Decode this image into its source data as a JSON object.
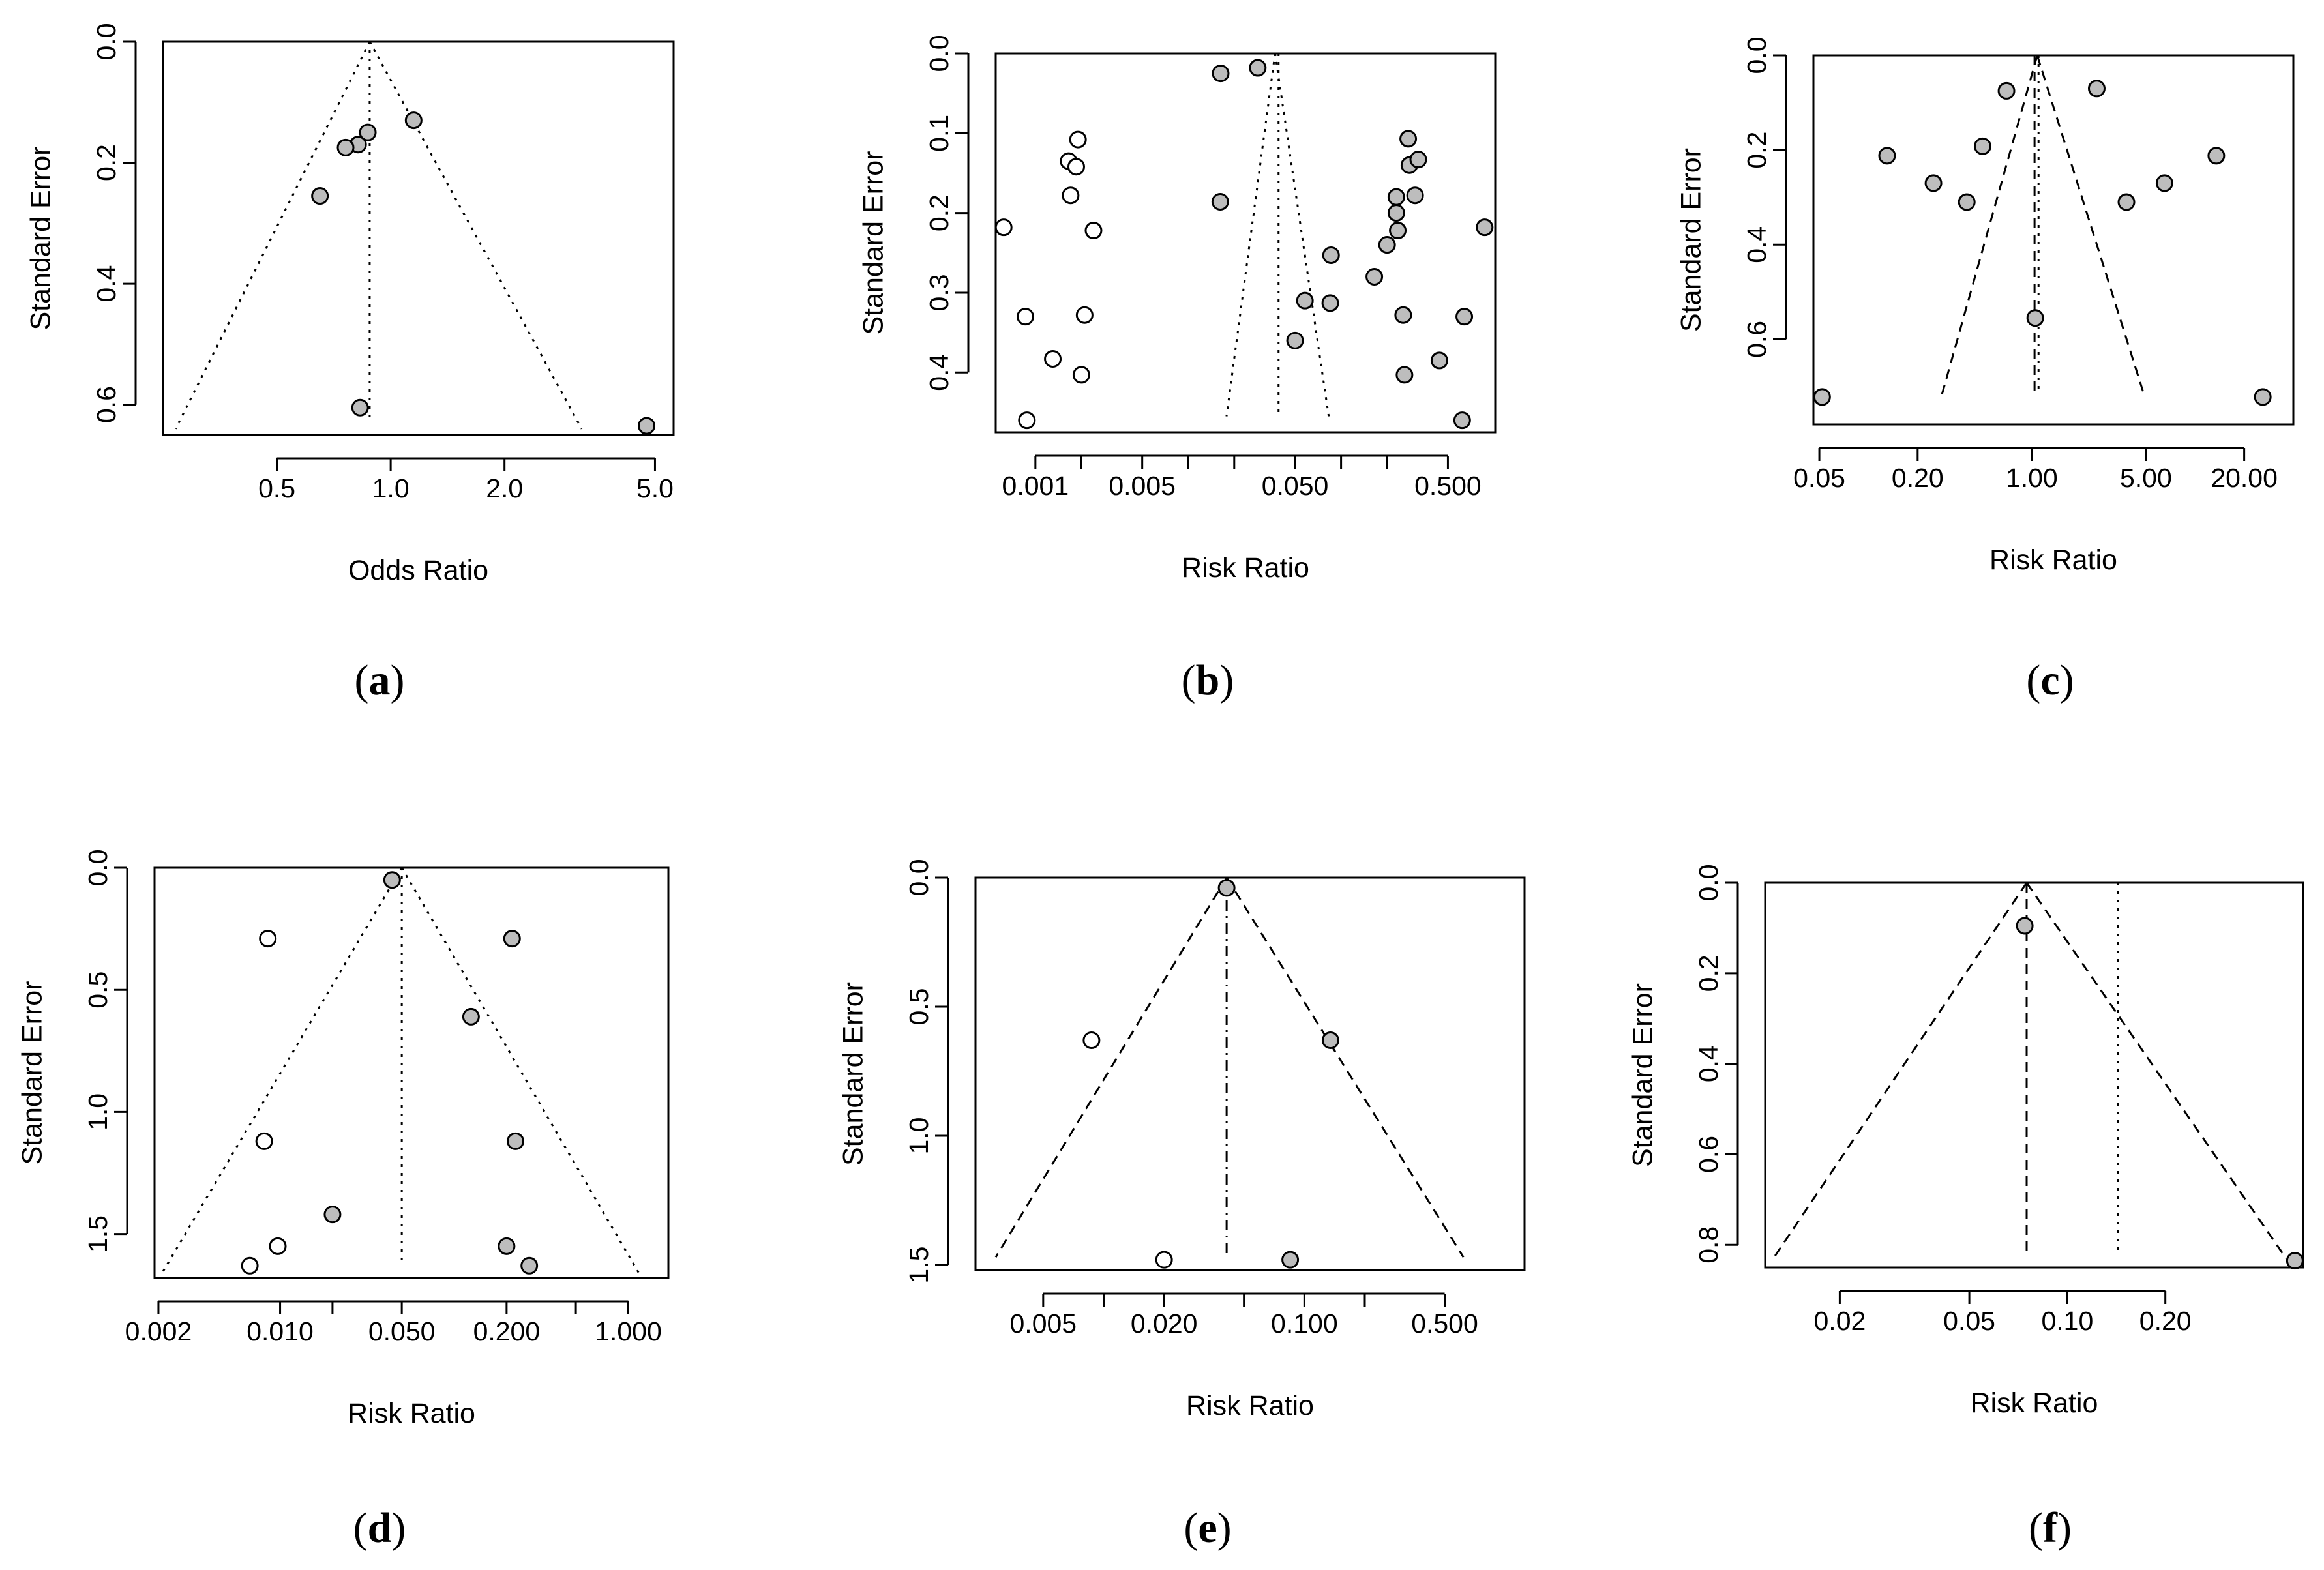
{
  "chart_data": [
    {
      "panel": "a",
      "type": "scatter",
      "subtype": "funnel",
      "xlabel": "Odds Ratio",
      "ylabel": "Standard Error",
      "xscale": "log",
      "xlim": [
        0.25,
        5.6
      ],
      "ylim": [
        0.0,
        0.65
      ],
      "xticks": [
        0.5,
        1.0,
        2.0,
        5.0
      ],
      "xtick_labels": [
        "0.5",
        "1.0",
        "2.0",
        "5.0"
      ],
      "yticks": [
        0.0,
        0.2,
        0.4,
        0.6
      ],
      "ytick_labels": [
        "0.0",
        "0.2",
        "0.4",
        "0.6"
      ],
      "center": 0.88,
      "lines": [
        {
          "style": "dotted",
          "points": [
            [
              0.88,
              0.0
            ],
            [
              0.88,
              0.62
            ]
          ]
        },
        {
          "style": "dotted",
          "points": [
            [
              0.88,
              0.0
            ],
            [
              0.27,
              0.64
            ]
          ]
        },
        {
          "style": "dotted",
          "points": [
            [
              0.88,
              0.0
            ],
            [
              3.2,
              0.64
            ]
          ]
        }
      ],
      "points": [
        {
          "x": 1.15,
          "y": 0.13,
          "fill": "gray"
        },
        {
          "x": 0.87,
          "y": 0.15,
          "fill": "gray"
        },
        {
          "x": 0.82,
          "y": 0.17,
          "fill": "gray"
        },
        {
          "x": 0.76,
          "y": 0.175,
          "fill": "gray"
        },
        {
          "x": 0.65,
          "y": 0.255,
          "fill": "gray"
        },
        {
          "x": 0.83,
          "y": 0.605,
          "fill": "gray"
        },
        {
          "x": 4.75,
          "y": 0.635,
          "fill": "gray"
        }
      ],
      "label": "a"
    },
    {
      "panel": "b",
      "type": "scatter",
      "subtype": "funnel",
      "xlabel": "Risk Ratio",
      "ylabel": "Standard Error",
      "xscale": "log",
      "xlim": [
        0.00055,
        1.02
      ],
      "ylim": [
        0.0,
        0.475
      ],
      "xticks": [
        0.001,
        0.005,
        0.05,
        0.5
      ],
      "xtick_labels": [
        "0.001",
        "0.005",
        "0.050",
        "0.500"
      ],
      "xticks_minor": [
        0.002,
        0.01,
        0.02,
        0.1,
        0.2
      ],
      "yticks": [
        0.0,
        0.1,
        0.2,
        0.3,
        0.4
      ],
      "ytick_labels": [
        "0.0",
        "0.1",
        "0.2",
        "0.3",
        "0.4"
      ],
      "center": 0.039,
      "lines": [
        {
          "style": "dotted",
          "points": [
            [
              0.039,
              0.0
            ],
            [
              0.039,
              0.455
            ]
          ]
        },
        {
          "style": "dotted",
          "points": [
            [
              0.037,
              0.0
            ],
            [
              0.0178,
              0.455
            ]
          ]
        },
        {
          "style": "dotted",
          "points": [
            [
              0.037,
              0.0
            ],
            [
              0.083,
              0.455
            ]
          ]
        }
      ],
      "points": [
        {
          "x": 0.0163,
          "y": 0.025,
          "fill": "gray"
        },
        {
          "x": 0.0285,
          "y": 0.018,
          "fill": "gray"
        },
        {
          "x": 0.0162,
          "y": 0.186,
          "fill": "gray"
        },
        {
          "x": 0.058,
          "y": 0.31,
          "fill": "gray"
        },
        {
          "x": 0.05,
          "y": 0.36,
          "fill": "gray"
        },
        {
          "x": 0.086,
          "y": 0.253,
          "fill": "gray"
        },
        {
          "x": 0.085,
          "y": 0.313,
          "fill": "gray"
        },
        {
          "x": 0.165,
          "y": 0.28,
          "fill": "gray"
        },
        {
          "x": 0.2,
          "y": 0.24,
          "fill": "gray"
        },
        {
          "x": 0.23,
          "y": 0.18,
          "fill": "gray"
        },
        {
          "x": 0.23,
          "y": 0.2,
          "fill": "gray"
        },
        {
          "x": 0.235,
          "y": 0.222,
          "fill": "gray"
        },
        {
          "x": 0.275,
          "y": 0.107,
          "fill": "gray"
        },
        {
          "x": 0.28,
          "y": 0.14,
          "fill": "gray"
        },
        {
          "x": 0.32,
          "y": 0.133,
          "fill": "gray"
        },
        {
          "x": 0.305,
          "y": 0.178,
          "fill": "gray"
        },
        {
          "x": 0.255,
          "y": 0.328,
          "fill": "gray"
        },
        {
          "x": 0.26,
          "y": 0.403,
          "fill": "gray"
        },
        {
          "x": 0.44,
          "y": 0.385,
          "fill": "gray"
        },
        {
          "x": 0.64,
          "y": 0.33,
          "fill": "gray"
        },
        {
          "x": 0.62,
          "y": 0.46,
          "fill": "gray"
        },
        {
          "x": 0.87,
          "y": 0.218,
          "fill": "gray"
        },
        {
          "x": 0.00062,
          "y": 0.218,
          "fill": "white"
        },
        {
          "x": 0.00086,
          "y": 0.33,
          "fill": "white"
        },
        {
          "x": 0.00088,
          "y": 0.46,
          "fill": "white"
        },
        {
          "x": 0.0013,
          "y": 0.383,
          "fill": "white"
        },
        {
          "x": 0.00165,
          "y": 0.135,
          "fill": "white"
        },
        {
          "x": 0.00185,
          "y": 0.142,
          "fill": "white"
        },
        {
          "x": 0.0019,
          "y": 0.108,
          "fill": "white"
        },
        {
          "x": 0.0017,
          "y": 0.178,
          "fill": "white"
        },
        {
          "x": 0.0024,
          "y": 0.222,
          "fill": "white"
        },
        {
          "x": 0.0021,
          "y": 0.328,
          "fill": "white"
        },
        {
          "x": 0.002,
          "y": 0.403,
          "fill": "white"
        }
      ],
      "label": "b"
    },
    {
      "panel": "c",
      "type": "scatter",
      "subtype": "funnel",
      "xlabel": "Risk Ratio",
      "ylabel": "Standard Error",
      "xscale": "log",
      "xlim": [
        0.046,
        40
      ],
      "ylim": [
        0.0,
        0.78
      ],
      "xticks": [
        0.05,
        0.2,
        1.0,
        5.0,
        20.0
      ],
      "xtick_labels": [
        "0.05",
        "0.20",
        "1.00",
        "5.00",
        "20.00"
      ],
      "yticks": [
        0.0,
        0.2,
        0.4,
        0.6
      ],
      "ytick_labels": [
        "0.0",
        "0.2",
        "0.4",
        "0.6"
      ],
      "center": 1.08,
      "lines": [
        {
          "style": "dotted",
          "points": [
            [
              1.1,
              0.0
            ],
            [
              1.1,
              0.71
            ]
          ]
        },
        {
          "style": "dashed",
          "points": [
            [
              1.04,
              0.0
            ],
            [
              1.04,
              0.71
            ]
          ]
        },
        {
          "style": "dashed",
          "points": [
            [
              1.08,
              0.0
            ],
            [
              0.28,
              0.72
            ]
          ]
        },
        {
          "style": "dashed",
          "points": [
            [
              1.08,
              0.0
            ],
            [
              4.9,
              0.72
            ]
          ]
        }
      ],
      "points": [
        {
          "x": 0.7,
          "y": 0.075,
          "fill": "gray"
        },
        {
          "x": 2.5,
          "y": 0.07,
          "fill": "gray"
        },
        {
          "x": 0.13,
          "y": 0.212,
          "fill": "gray"
        },
        {
          "x": 0.5,
          "y": 0.192,
          "fill": "gray"
        },
        {
          "x": 0.25,
          "y": 0.27,
          "fill": "gray"
        },
        {
          "x": 0.4,
          "y": 0.31,
          "fill": "gray"
        },
        {
          "x": 1.05,
          "y": 0.555,
          "fill": "gray"
        },
        {
          "x": 3.8,
          "y": 0.31,
          "fill": "gray"
        },
        {
          "x": 6.5,
          "y": 0.27,
          "fill": "gray"
        },
        {
          "x": 13.5,
          "y": 0.212,
          "fill": "gray"
        },
        {
          "x": 0.052,
          "y": 0.722,
          "fill": "gray"
        },
        {
          "x": 26,
          "y": 0.722,
          "fill": "gray"
        }
      ],
      "label": "c"
    },
    {
      "panel": "d",
      "type": "scatter",
      "subtype": "funnel",
      "xlabel": "Risk Ratio",
      "ylabel": "Standard Error",
      "xscale": "log",
      "xlim": [
        0.0019,
        1.7
      ],
      "ylim": [
        0.0,
        1.68
      ],
      "xticks": [
        0.002,
        0.01,
        0.05,
        0.2,
        1.0
      ],
      "xtick_labels": [
        "0.002",
        "0.010",
        "0.050",
        "0.200",
        "1.000"
      ],
      "xticks_minor": [
        0.02,
        0.5
      ],
      "yticks": [
        0.0,
        0.5,
        1.0,
        1.5
      ],
      "ytick_labels": [
        "0.0",
        "0.5",
        "1.0",
        "1.5"
      ],
      "center": 0.05,
      "lines": [
        {
          "style": "dotted",
          "points": [
            [
              0.05,
              0.0
            ],
            [
              0.05,
              1.62
            ]
          ]
        },
        {
          "style": "dotted",
          "points": [
            [
              0.05,
              0.0
            ],
            [
              0.0021,
              1.66
            ]
          ]
        },
        {
          "style": "dotted",
          "points": [
            [
              0.05,
              0.0
            ],
            [
              1.15,
              1.66
            ]
          ]
        }
      ],
      "points": [
        {
          "x": 0.044,
          "y": 0.05,
          "fill": "gray"
        },
        {
          "x": 0.215,
          "y": 0.29,
          "fill": "gray"
        },
        {
          "x": 0.125,
          "y": 0.61,
          "fill": "gray"
        },
        {
          "x": 0.225,
          "y": 1.12,
          "fill": "gray"
        },
        {
          "x": 0.02,
          "y": 1.42,
          "fill": "gray"
        },
        {
          "x": 0.2,
          "y": 1.55,
          "fill": "gray"
        },
        {
          "x": 0.27,
          "y": 1.63,
          "fill": "gray"
        },
        {
          "x": 0.0085,
          "y": 0.29,
          "fill": "white"
        },
        {
          "x": 0.0081,
          "y": 1.12,
          "fill": "white"
        },
        {
          "x": 0.0097,
          "y": 1.55,
          "fill": "white"
        },
        {
          "x": 0.0067,
          "y": 1.63,
          "fill": "white"
        }
      ],
      "label": "d"
    },
    {
      "panel": "e",
      "type": "scatter",
      "subtype": "funnel",
      "xlabel": "Risk Ratio",
      "ylabel": "Standard Error",
      "xscale": "log",
      "xlim": [
        0.0023,
        1.25
      ],
      "ylim": [
        0.0,
        1.52
      ],
      "xticks": [
        0.005,
        0.02,
        0.1,
        0.5
      ],
      "xtick_labels": [
        "0.005",
        "0.020",
        "0.100",
        "0.500"
      ],
      "xticks_minor": [
        0.01,
        0.05,
        0.2
      ],
      "yticks": [
        0.0,
        0.5,
        1.0,
        1.5
      ],
      "ytick_labels": [
        "0.0",
        "0.5",
        "1.0",
        "1.5"
      ],
      "center": 0.041,
      "lines": [
        {
          "style": "dotdash",
          "points": [
            [
              0.041,
              0.0
            ],
            [
              0.041,
              1.47
            ]
          ]
        },
        {
          "style": "dashed",
          "points": [
            [
              0.041,
              0.0
            ],
            [
              0.0029,
              1.47
            ]
          ]
        },
        {
          "style": "dashed",
          "points": [
            [
              0.041,
              0.0
            ],
            [
              0.62,
              1.47
            ]
          ]
        }
      ],
      "points": [
        {
          "x": 0.041,
          "y": 0.04,
          "fill": "gray"
        },
        {
          "x": 0.135,
          "y": 0.63,
          "fill": "gray"
        },
        {
          "x": 0.085,
          "y": 1.48,
          "fill": "gray"
        },
        {
          "x": 0.0087,
          "y": 0.63,
          "fill": "white"
        },
        {
          "x": 0.02,
          "y": 1.48,
          "fill": "white"
        }
      ],
      "label": "e"
    },
    {
      "panel": "f",
      "type": "scatter",
      "subtype": "funnel",
      "xlabel": "Risk Ratio",
      "ylabel": "Standard Error",
      "xscale": "log",
      "xlim": [
        0.0118,
        0.53
      ],
      "ylim": [
        0.0,
        0.85
      ],
      "xticks": [
        0.02,
        0.05,
        0.1,
        0.2
      ],
      "xtick_labels": [
        "0.02",
        "0.05",
        "0.10",
        "0.20"
      ],
      "yticks": [
        0.0,
        0.2,
        0.4,
        0.6,
        0.8
      ],
      "ytick_labels": [
        "0.0",
        "0.2",
        "0.4",
        "0.6",
        "0.8"
      ],
      "center": 0.075,
      "lines": [
        {
          "style": "dashed",
          "points": [
            [
              0.075,
              0.0
            ],
            [
              0.075,
              0.82
            ]
          ]
        },
        {
          "style": "dotted",
          "points": [
            [
              0.143,
              0.0
            ],
            [
              0.143,
              0.82
            ]
          ]
        },
        {
          "style": "dashed",
          "points": [
            [
              0.075,
              0.0
            ],
            [
              0.0125,
              0.83
            ]
          ]
        },
        {
          "style": "dashed",
          "points": [
            [
              0.075,
              0.0
            ],
            [
              0.47,
              0.83
            ]
          ]
        }
      ],
      "points": [
        {
          "x": 0.074,
          "y": 0.095,
          "fill": "gray"
        },
        {
          "x": 0.5,
          "y": 0.835,
          "fill": "gray"
        }
      ],
      "label": "f"
    }
  ]
}
